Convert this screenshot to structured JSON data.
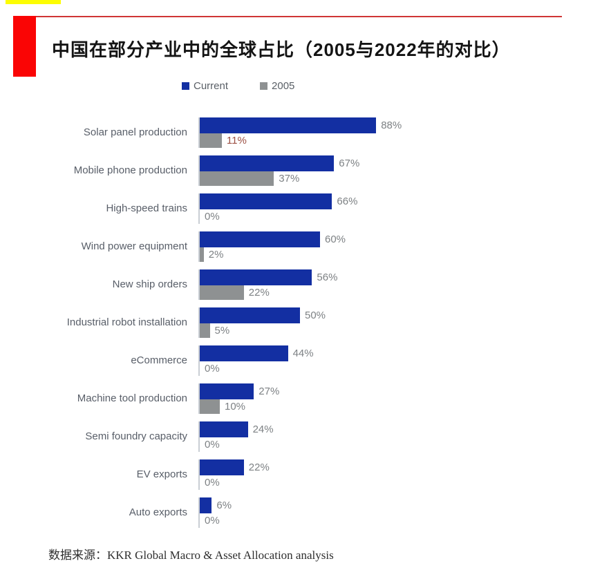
{
  "page": {
    "title": "中国在部分产业中的全球占比（2005与2022年的对比）",
    "source_note": "数据来源：KKR Global Macro & Asset Allocation analysis"
  },
  "annotations": {
    "yellow_highlight_color": "#fdfd02",
    "red_block_color": "#fa0505",
    "red_line_color": "#cf3434"
  },
  "legend": [
    {
      "label": "Current",
      "color": "#132fa2"
    },
    {
      "label": "2005",
      "color": "#8e9192"
    }
  ],
  "chart_data": {
    "type": "bar",
    "orientation": "horizontal",
    "title": "中国在部分产业中的全球占比（2005与2022年的对比）",
    "categories": [
      "Solar panel production",
      "Mobile phone production",
      "High-speed trains",
      "Wind power equipment",
      "New ship orders",
      "Industrial robot installation",
      "eCommerce",
      "Machine tool production",
      "Semi foundry capacity",
      "EV exports",
      "Auto exports"
    ],
    "series": [
      {
        "name": "Current",
        "color": "#132fa2",
        "values": [
          88,
          67,
          66,
          60,
          56,
          50,
          44,
          27,
          24,
          22,
          6
        ]
      },
      {
        "name": "2005",
        "color": "#8e9192",
        "values": [
          11,
          37,
          0,
          2,
          22,
          5,
          0,
          10,
          0,
          0,
          0
        ],
        "label_color_overrides": {
          "0": "#9c5044"
        }
      }
    ],
    "value_suffix": "%",
    "xlim": [
      0,
      100
    ],
    "grid": false,
    "legend_position": "top",
    "value_label_color": "#7d8184",
    "axis_line_color": "#c9ced4",
    "category_label_color": "#585e68"
  }
}
